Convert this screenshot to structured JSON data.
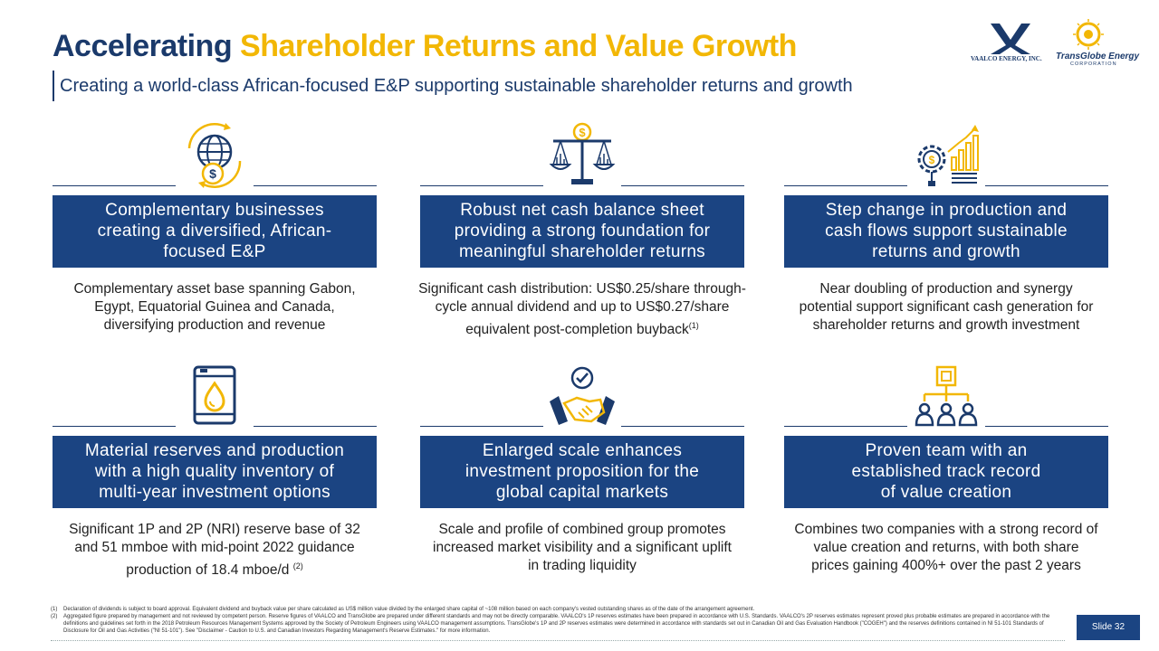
{
  "header": {
    "title_part1": "Accelerating",
    "title_part2": "Shareholder Returns and Value Growth",
    "subtitle": "Creating a world-class African-focused E&P supporting sustainable shareholder returns and growth"
  },
  "logos": {
    "vaalco_text": "VAALCO ENERGY, INC.",
    "transglobe_name": "TransGlobe Energy",
    "transglobe_sub": "CORPORATION"
  },
  "cards": [
    {
      "icon": "globe-dollar-icon",
      "box_lines": [
        "Complementary businesses",
        "creating a diversified, African-",
        "focused E&P"
      ],
      "desc_lines": [
        "Complementary asset base spanning Gabon,",
        "Egypt, Equatorial Guinea and Canada,",
        "diversifying production and revenue"
      ]
    },
    {
      "icon": "scales-dollar-icon",
      "box_lines": [
        "Robust net cash balance sheet",
        "providing a strong foundation for",
        "meaningful shareholder returns"
      ],
      "desc_lines": [
        "Significant cash distribution: US$0.25/share through-",
        "cycle annual dividend and up to US$0.27/share",
        "equivalent post-completion buyback"
      ],
      "desc_sup": "(1)"
    },
    {
      "icon": "gear-growth-chart-icon",
      "box_lines": [
        "Step change in production and",
        "cash flows support sustainable",
        "returns and growth"
      ],
      "desc_lines": [
        "Near doubling of production and synergy",
        "potential support significant cash generation for",
        "shareholder returns and growth investment"
      ]
    },
    {
      "icon": "oil-barrel-icon",
      "box_lines": [
        "Material reserves and production",
        "with a high quality inventory of",
        "multi-year investment options"
      ],
      "desc_lines": [
        "Significant 1P and 2P (NRI) reserve base of 32",
        "and 51 mmboe with mid-point 2022 guidance",
        "production of 18.4 mboe/d"
      ],
      "desc_sup": "(2)"
    },
    {
      "icon": "handshake-check-icon",
      "box_lines": [
        "Enlarged scale enhances",
        "investment proposition for the",
        "global capital markets"
      ],
      "desc_lines": [
        "Scale and profile of combined group promotes",
        "increased market visibility and a significant uplift",
        "in trading liquidity"
      ]
    },
    {
      "icon": "team-hierarchy-icon",
      "box_lines": [
        "Proven team with an",
        "established track record",
        "of value creation"
      ],
      "desc_lines": [
        "Combines two companies with a strong record of",
        "value creation and returns, with both share",
        "prices gaining 400%+ over the past 2 years"
      ]
    }
  ],
  "footnotes": [
    {
      "num": "(1)",
      "text": "Declaration of dividends is subject to board approval. Equivalent dividend and buyback value per share calculated as US$ million value divided by the enlarged share capital of ~108 million based on each company's vested outstanding shares as of the date of the arrangement agreement."
    },
    {
      "num": "(2)",
      "text": "Aggregated figure prepared by management and not reviewed by competent person. Reserve figures of VAALCO and TransGlobe are prepared under different standards and may not be directly comparable. VAALCO's 1P reserves estimates have been prepared in accordance with U.S. Standards. VAALCO's 2P reserves estimates represent proved plus probable estimates are prepared in accordance with the definitions and guidelines set forth in the 2018 Petroleum Resources Management Systems approved by the Society of Petroleum Engineers using VAALCO management assumptions. TransGlobe's 1P and 2P reserves estimates were determined in accordance with standards set out in Canadian Oil and Gas Evaluation Handbook (\"COGEH\") and the reserves definitions contained in NI 51-101 Standards of Disclosure for Oil and Gas Activities (\"NI 51-101\"). See \"Disclaimer - Caution to U.S. and Canadian Investors Regarding Management's Reserve Estimates.\" for more information."
    }
  ],
  "slide_number": "Slide 32",
  "colors": {
    "navy": "#1b4482",
    "title_navy": "#1b3a6b",
    "gold": "#f2b705"
  }
}
